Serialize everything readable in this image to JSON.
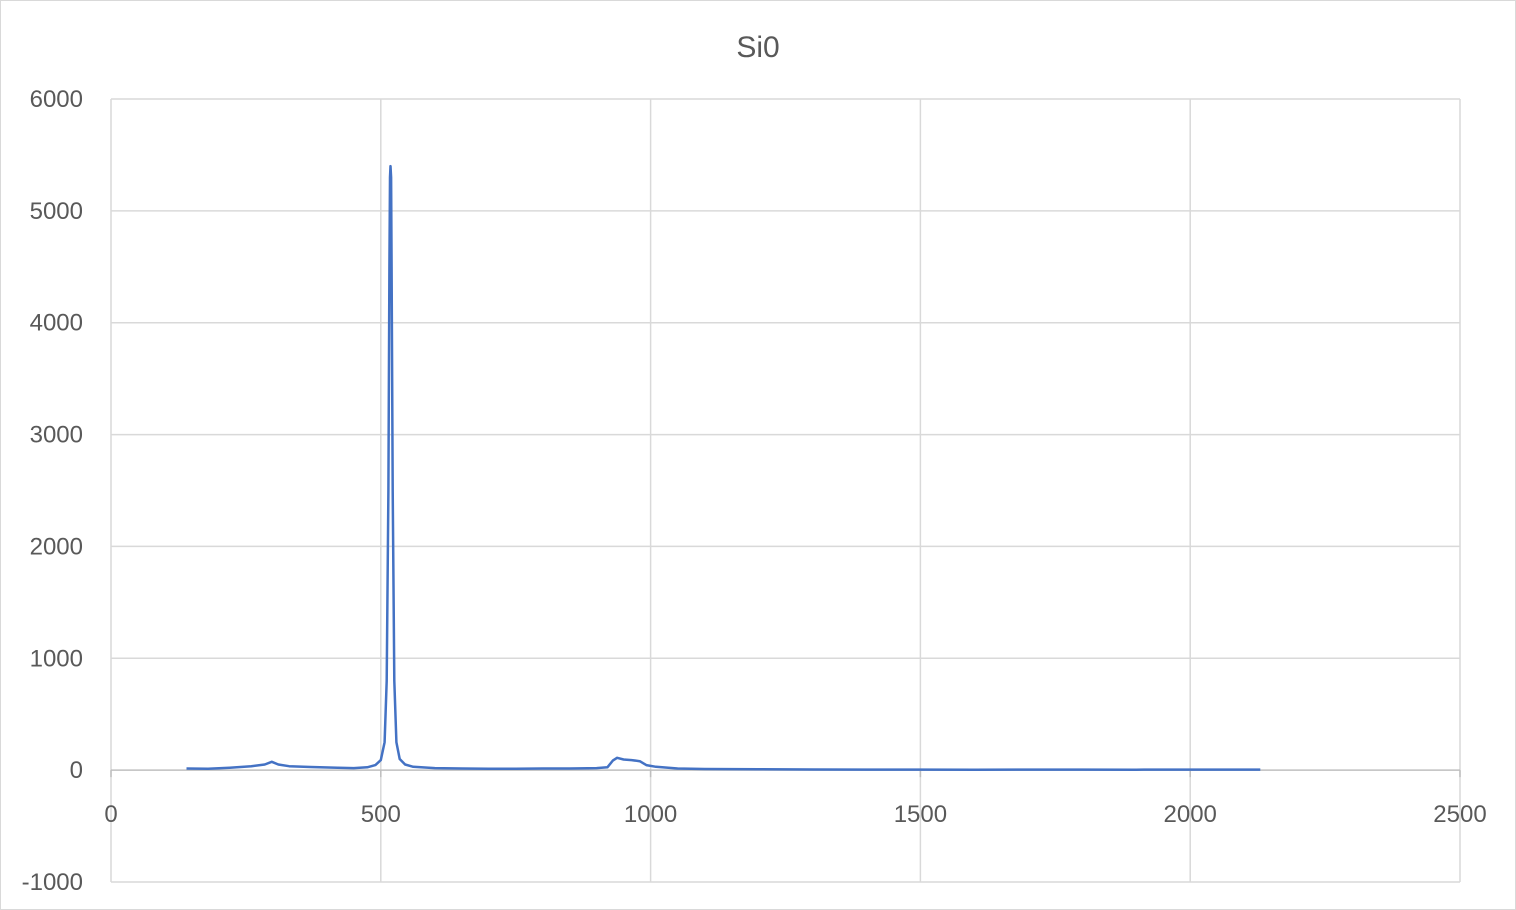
{
  "chart_data": {
    "type": "line",
    "title": "Si0",
    "xlabel": "",
    "ylabel": "",
    "xlim": [
      0,
      2500
    ],
    "ylim": [
      -1000,
      6000
    ],
    "x_ticks": [
      0,
      500,
      1000,
      1500,
      2000,
      2500
    ],
    "y_ticks": [
      -1000,
      0,
      1000,
      2000,
      3000,
      4000,
      5000,
      6000
    ],
    "grid": true,
    "legend": "none",
    "series": [
      {
        "color": "#4472c4",
        "points": [
          [
            140,
            15
          ],
          [
            180,
            12
          ],
          [
            220,
            22
          ],
          [
            260,
            35
          ],
          [
            285,
            50
          ],
          [
            298,
            75
          ],
          [
            310,
            50
          ],
          [
            330,
            35
          ],
          [
            370,
            28
          ],
          [
            420,
            22
          ],
          [
            450,
            18
          ],
          [
            475,
            25
          ],
          [
            490,
            45
          ],
          [
            500,
            90
          ],
          [
            507,
            250
          ],
          [
            511,
            800
          ],
          [
            514,
            2500
          ],
          [
            516,
            4500
          ],
          [
            517,
            5300
          ],
          [
            518,
            5400
          ],
          [
            519,
            5300
          ],
          [
            520,
            4500
          ],
          [
            522,
            2500
          ],
          [
            525,
            800
          ],
          [
            529,
            250
          ],
          [
            535,
            100
          ],
          [
            545,
            50
          ],
          [
            560,
            30
          ],
          [
            600,
            18
          ],
          [
            650,
            15
          ],
          [
            700,
            12
          ],
          [
            750,
            12
          ],
          [
            800,
            15
          ],
          [
            850,
            15
          ],
          [
            900,
            18
          ],
          [
            920,
            25
          ],
          [
            930,
            85
          ],
          [
            938,
            110
          ],
          [
            950,
            95
          ],
          [
            965,
            90
          ],
          [
            980,
            80
          ],
          [
            992,
            45
          ],
          [
            1010,
            30
          ],
          [
            1050,
            15
          ],
          [
            1100,
            10
          ],
          [
            1200,
            8
          ],
          [
            1300,
            6
          ],
          [
            1400,
            5
          ],
          [
            1500,
            5
          ],
          [
            1600,
            4
          ],
          [
            1700,
            5
          ],
          [
            1800,
            5
          ],
          [
            1900,
            4
          ],
          [
            2000,
            5
          ],
          [
            2050,
            5
          ],
          [
            2130,
            5
          ]
        ]
      }
    ]
  }
}
